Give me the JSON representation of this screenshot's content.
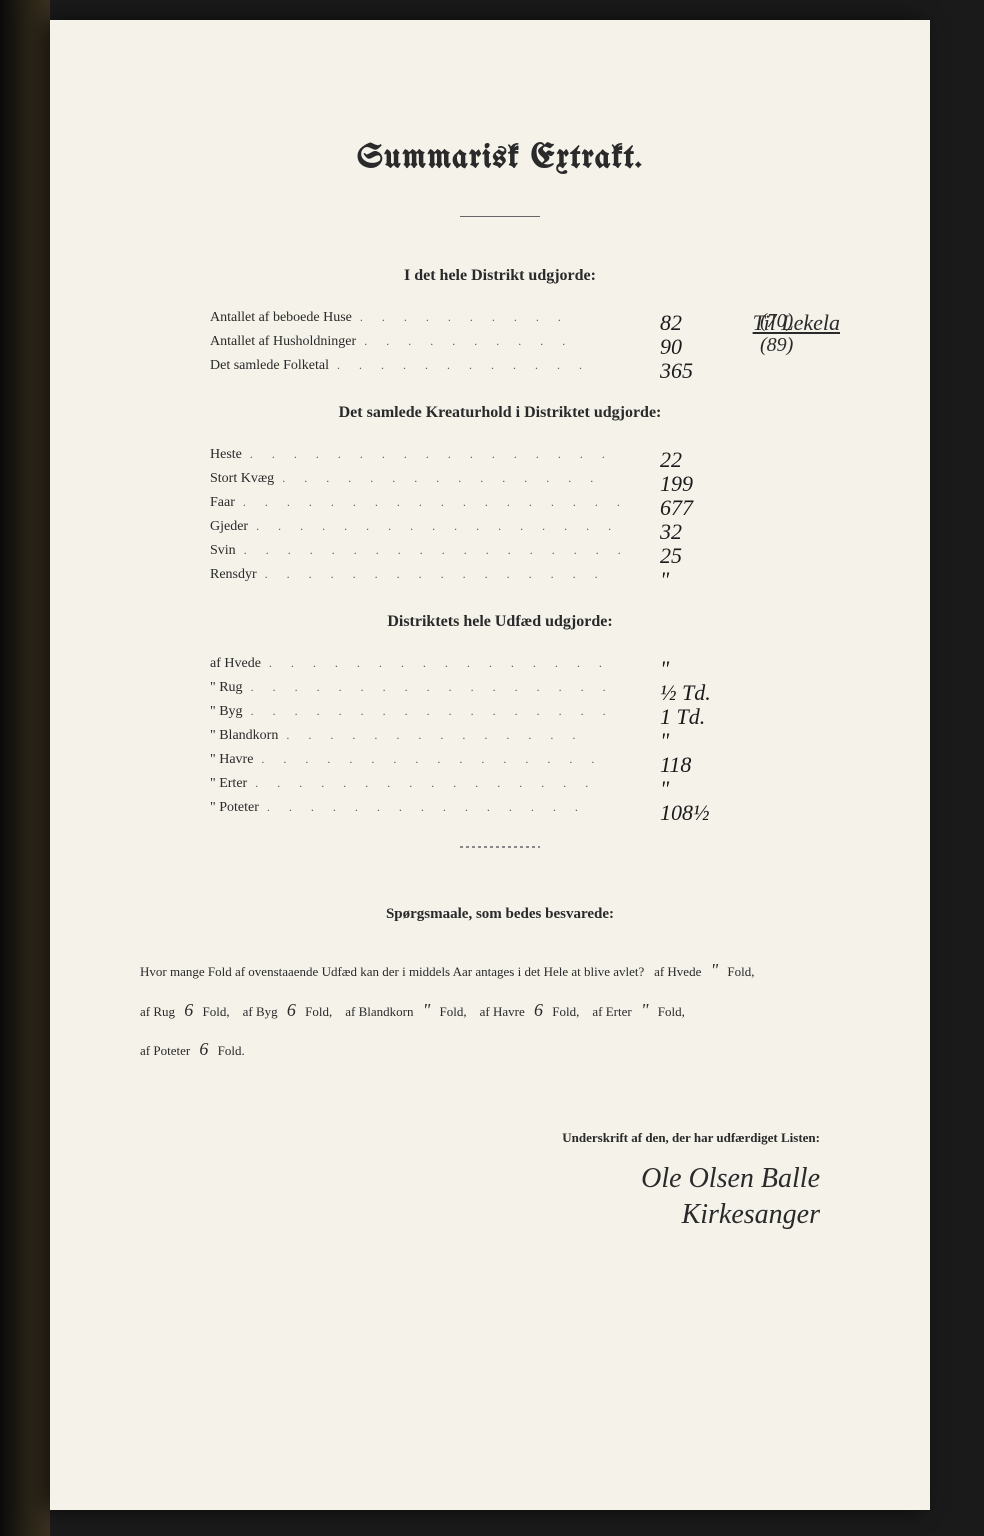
{
  "title": "Summarisk Extrakt.",
  "header_annotation": "Til Lekela",
  "section1": {
    "header": "I det hele Distrikt udgjorde:",
    "rows": [
      {
        "label": "Antallet af beboede Huse",
        "dots": ". . . . . . . . . .",
        "value": "82",
        "note": "(70)"
      },
      {
        "label": "Antallet af Husholdninger",
        "dots": ". . . . . . . . . .",
        "value": "90",
        "note": "(89)"
      },
      {
        "label": "Det samlede Folketal",
        "dots": ". . . . . . . . . . . .",
        "value": "365",
        "note": ""
      }
    ]
  },
  "section2": {
    "header": "Det samlede Kreaturhold i Distriktet udgjorde:",
    "rows": [
      {
        "label": "Heste",
        "dots": ". . . . . . . . . . . . . . . . .",
        "value": "22"
      },
      {
        "label": "Stort Kvæg",
        "dots": ". . . . . . . . . . . . . . .",
        "value": "199"
      },
      {
        "label": "Faar",
        "dots": ". . . . . . . . . . . . . . . . . .",
        "value": "677"
      },
      {
        "label": "Gjeder",
        "dots": ". . . . . . . . . . . . . . . . .",
        "value": "32"
      },
      {
        "label": "Svin",
        "dots": ". . . . . . . . . . . . . . . . . .",
        "value": "25"
      },
      {
        "label": "Rensdyr",
        "dots": ". . . . . . . . . . . . . . . .",
        "value": "\""
      }
    ]
  },
  "section3": {
    "header": "Distriktets hele Udfæd udgjorde:",
    "rows": [
      {
        "label": "af Hvede",
        "dots": ". . . . . . . . . . . . . . . .",
        "value": "\""
      },
      {
        "label": "\" Rug",
        "dots": ". . . . . . . . . . . . . . . . .",
        "value": "½ Td."
      },
      {
        "label": "\" Byg",
        "dots": ". . . . . . . . . . . . . . . . .",
        "value": "1 Td."
      },
      {
        "label": "\" Blandkorn",
        "dots": ". . . . . . . . . . . . . .",
        "value": "\""
      },
      {
        "label": "\" Havre",
        "dots": ". . . . . . . . . . . . . . . .",
        "value": "118"
      },
      {
        "label": "\" Erter",
        "dots": ". . . . . . . . . . . . . . . .",
        "value": "\""
      },
      {
        "label": "\" Poteter",
        "dots": ". . . . . . . . . . . . . . .",
        "value": "108½"
      }
    ]
  },
  "questions": {
    "header": "Spørgsmaale, som bedes besvarede:",
    "intro": "Hvor mange Fold af ovenstaaende Udfæd kan der i middels Aar antages i det Hele at blive avlet?",
    "items": [
      {
        "crop": "af Hvede",
        "value": "\"",
        "unit": "Fold,"
      },
      {
        "crop": "af Rug",
        "value": "6",
        "unit": "Fold,"
      },
      {
        "crop": "af Byg",
        "value": "6",
        "unit": "Fold,"
      },
      {
        "crop": "af Blandkorn",
        "value": "\"",
        "unit": "Fold,"
      },
      {
        "crop": "af Havre",
        "value": "6",
        "unit": "Fold,"
      },
      {
        "crop": "af Erter",
        "value": "\"",
        "unit": "Fold,"
      },
      {
        "crop": "af Poteter",
        "value": "6",
        "unit": "Fold."
      }
    ]
  },
  "signature": {
    "label": "Underskrift af den, der har udfærdiget Listen:",
    "name": "Ole Olsen Balle",
    "title": "Kirkesanger"
  },
  "colors": {
    "page_bg": "#f5f2ea",
    "text": "#2a2a2a",
    "handwriting": "#1a1a1a"
  }
}
